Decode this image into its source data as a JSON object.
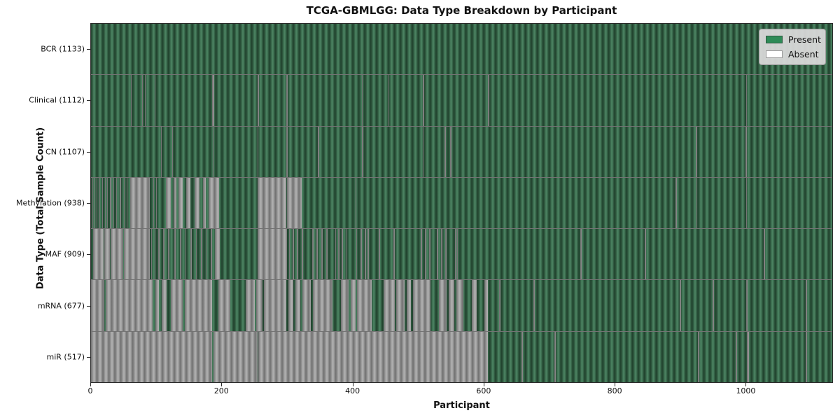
{
  "title": "TCGA-GBMLGG: Data Type Breakdown by Participant",
  "colors": {
    "present": "#2e8b57",
    "absent": "#ffffff",
    "present_texture_light": "#4a8160",
    "present_texture_dark": "#20402c",
    "absent_texture_light": "#aeaeae",
    "absent_texture_dark": "#6f6f6f",
    "legend_bg": "#d8d8d8",
    "axis": "#2a2a2a"
  },
  "legend": [
    {
      "label": "Present",
      "state": "present"
    },
    {
      "label": "Absent",
      "state": "absent"
    }
  ],
  "chart_data": {
    "type": "heatmap",
    "title": "TCGA-GBMLGG: Data Type Breakdown by Participant",
    "xlabel": "Participant",
    "ylabel": "Data Type (Total Sample Count)",
    "x_ticks": [
      0,
      200,
      400,
      600,
      800,
      1000
    ],
    "xlim": [
      0,
      1133
    ],
    "n_participants": 1133,
    "legend_position": "upper right",
    "grid": false,
    "rows": [
      {
        "name": "BCR",
        "label": "BCR (1133)",
        "present_count": 1133,
        "absent_intervals": []
      },
      {
        "name": "Clinical",
        "label": "Clinical (1112)",
        "present_count": 1112,
        "absent_intervals": [
          [
            61,
            62
          ],
          [
            78,
            79
          ],
          [
            82,
            83
          ],
          [
            97,
            98
          ],
          [
            185,
            188
          ],
          [
            255,
            257
          ],
          [
            298,
            301
          ],
          [
            414,
            415
          ],
          [
            455,
            456
          ],
          [
            507,
            509
          ],
          [
            607,
            609
          ],
          [
            1001,
            1003
          ]
        ]
      },
      {
        "name": "CN",
        "label": "CN (1107)",
        "present_count": 1107,
        "absent_intervals": [
          [
            107,
            108
          ],
          [
            124,
            125
          ],
          [
            186,
            187
          ],
          [
            255,
            256
          ],
          [
            299,
            301
          ],
          [
            347,
            349
          ],
          [
            414,
            416
          ],
          [
            507,
            508
          ],
          [
            540,
            542
          ],
          [
            549,
            551
          ],
          [
            924,
            926
          ],
          [
            1000,
            1002
          ]
        ]
      },
      {
        "name": "Methylation",
        "label": "Methylation (938)",
        "present_count": 938,
        "absent_intervals": [
          [
            2,
            3
          ],
          [
            5,
            6
          ],
          [
            9,
            10
          ],
          [
            13,
            14
          ],
          [
            17,
            18
          ],
          [
            21,
            22
          ],
          [
            25,
            26
          ],
          [
            29,
            31
          ],
          [
            34,
            35
          ],
          [
            39,
            40
          ],
          [
            44,
            46
          ],
          [
            50,
            51
          ],
          [
            55,
            56
          ],
          [
            60,
            90
          ],
          [
            95,
            96
          ],
          [
            100,
            101
          ],
          [
            115,
            122
          ],
          [
            126,
            130
          ],
          [
            134,
            140
          ],
          [
            146,
            152
          ],
          [
            158,
            166
          ],
          [
            171,
            175
          ],
          [
            180,
            196
          ],
          [
            255,
            298
          ],
          [
            300,
            322
          ],
          [
            404,
            405
          ],
          [
            893,
            896
          ],
          [
            925,
            926
          ],
          [
            1001,
            1002
          ]
        ]
      },
      {
        "name": "MAF",
        "label": "MAF (909)",
        "present_count": 909,
        "absent_intervals": [
          [
            3,
            19
          ],
          [
            20,
            29
          ],
          [
            30,
            49
          ],
          [
            50,
            90
          ],
          [
            92,
            93
          ],
          [
            97,
            98
          ],
          [
            103,
            105
          ],
          [
            110,
            112
          ],
          [
            118,
            120
          ],
          [
            127,
            129
          ],
          [
            136,
            138
          ],
          [
            144,
            146
          ],
          [
            152,
            154
          ],
          [
            160,
            162
          ],
          [
            168,
            170
          ],
          [
            176,
            178
          ],
          [
            183,
            185
          ],
          [
            189,
            197
          ],
          [
            255,
            300
          ],
          [
            303,
            304
          ],
          [
            308,
            310
          ],
          [
            315,
            317
          ],
          [
            322,
            324
          ],
          [
            338,
            340
          ],
          [
            345,
            347
          ],
          [
            352,
            354
          ],
          [
            360,
            362
          ],
          [
            373,
            375
          ],
          [
            378,
            380
          ],
          [
            383,
            385
          ],
          [
            390,
            392
          ],
          [
            405,
            407
          ],
          [
            412,
            414
          ],
          [
            418,
            420
          ],
          [
            423,
            425
          ],
          [
            440,
            442
          ],
          [
            462,
            464
          ],
          [
            504,
            506
          ],
          [
            510,
            512
          ],
          [
            517,
            519
          ],
          [
            529,
            531
          ],
          [
            535,
            537
          ],
          [
            541,
            543
          ],
          [
            556,
            558
          ],
          [
            560,
            561
          ],
          [
            748,
            750
          ],
          [
            846,
            848
          ],
          [
            1028,
            1030
          ]
        ]
      },
      {
        "name": "mRNA",
        "label": "mRNA (677)",
        "present_count": 677,
        "absent_intervals": [
          [
            0,
            20
          ],
          [
            22,
            94
          ],
          [
            98,
            104
          ],
          [
            108,
            116
          ],
          [
            122,
            140
          ],
          [
            143,
            185
          ],
          [
            195,
            213
          ],
          [
            236,
            250
          ],
          [
            252,
            262
          ],
          [
            264,
            299
          ],
          [
            302,
            309
          ],
          [
            312,
            320
          ],
          [
            323,
            336
          ],
          [
            339,
            369
          ],
          [
            382,
            394
          ],
          [
            397,
            404
          ],
          [
            407,
            429
          ],
          [
            447,
            464
          ],
          [
            466,
            479
          ],
          [
            482,
            489
          ],
          [
            492,
            519
          ],
          [
            532,
            544
          ],
          [
            547,
            555
          ],
          [
            558,
            569
          ],
          [
            582,
            589
          ],
          [
            601,
            607
          ],
          [
            624,
            626
          ],
          [
            676,
            678
          ],
          [
            900,
            902
          ],
          [
            950,
            952
          ],
          [
            1001,
            1004
          ],
          [
            1092,
            1094
          ]
        ]
      },
      {
        "name": "miR",
        "label": "miR (517)",
        "present_count": 517,
        "absent_intervals": [
          [
            0,
            185
          ],
          [
            187,
            255
          ],
          [
            256,
            607
          ],
          [
            658,
            660
          ],
          [
            708,
            710
          ],
          [
            928,
            930
          ],
          [
            985,
            987
          ],
          [
            1003,
            1006
          ],
          [
            1092,
            1094
          ]
        ]
      }
    ]
  }
}
